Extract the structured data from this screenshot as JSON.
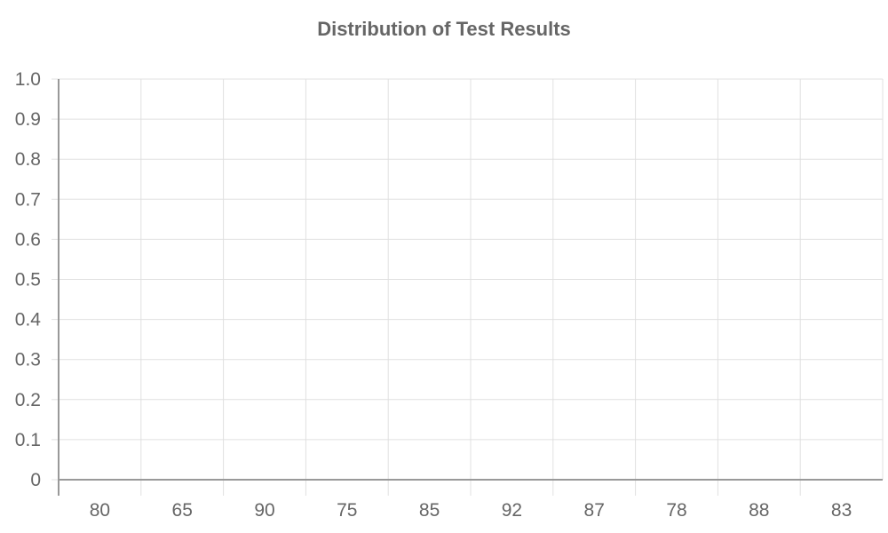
{
  "chart_data": {
    "type": "bar",
    "title": "Distribution of Test Results",
    "categories": [
      "80",
      "65",
      "90",
      "75",
      "85",
      "92",
      "87",
      "78",
      "88",
      "83"
    ],
    "values": [
      0,
      0,
      0,
      0,
      0,
      0,
      0,
      0,
      0,
      0
    ],
    "ylim": [
      0,
      1.0
    ],
    "y_ticks": [
      "0",
      "0.1",
      "0.2",
      "0.3",
      "0.4",
      "0.5",
      "0.6",
      "0.7",
      "0.8",
      "0.9",
      "1.0"
    ],
    "xlabel": "",
    "ylabel": "",
    "grid": true,
    "colors": {
      "grid": "#e0e0e0",
      "axis": "#999999",
      "text": "#666666"
    }
  }
}
